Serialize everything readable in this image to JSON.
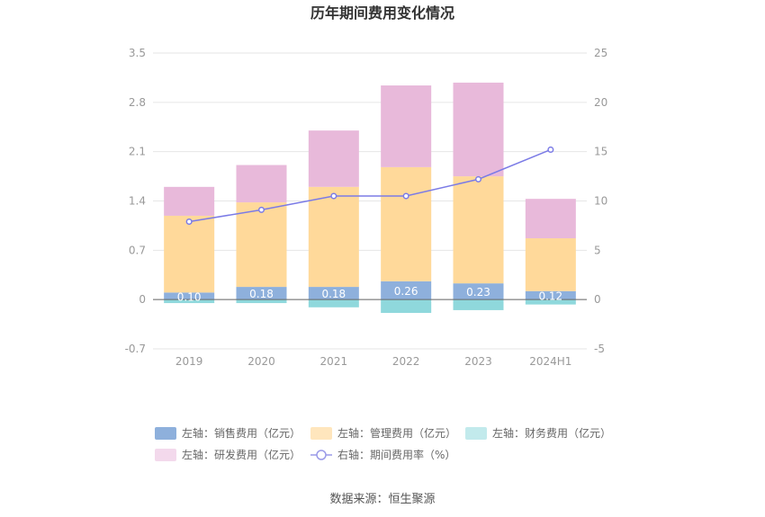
{
  "chart_data": {
    "type": "bar",
    "title": "历年期间费用变化情况",
    "categories": [
      "2019",
      "2020",
      "2021",
      "2022",
      "2023",
      "2024H1"
    ],
    "left_axis": {
      "ticks": [
        "3.5",
        "2.8",
        "2.1",
        "1.4",
        "0.7",
        "0",
        "-0.7"
      ],
      "min": -0.7,
      "max": 3.5
    },
    "right_axis": {
      "ticks": [
        "25",
        "20",
        "15",
        "10",
        "5",
        "0",
        "-5"
      ],
      "min": -5,
      "max": 25
    },
    "series": [
      {
        "name": "左轴：销售费用（亿元）",
        "color": "#8eb0dc",
        "values": [
          0.1,
          0.18,
          0.18,
          0.26,
          0.23,
          0.12
        ],
        "labels": [
          "0.10",
          "0.18",
          "0.18",
          "0.26",
          "0.23",
          "0.12"
        ]
      },
      {
        "name": "左轴：管理费用（亿元）",
        "color": "#ffd99a",
        "values": [
          1.09,
          1.2,
          1.42,
          1.62,
          1.52,
          0.75
        ]
      },
      {
        "name": "左轴：财务费用（亿元）",
        "color": "#8fd8dc",
        "values": [
          -0.05,
          -0.05,
          -0.11,
          -0.19,
          -0.15,
          -0.07
        ]
      },
      {
        "name": "左轴：研发费用（亿元）",
        "color": "#e8b9da",
        "values": [
          0.41,
          0.53,
          0.8,
          1.16,
          1.33,
          0.56
        ]
      },
      {
        "name": "右轴：期间费用率（%）",
        "color": "#7b7be6",
        "axis": "right",
        "values": [
          7.9,
          9.1,
          10.5,
          10.5,
          12.2,
          15.2
        ]
      }
    ],
    "legend_position": "bottom",
    "grid": true
  },
  "legend": [
    {
      "label": "左轴：销售费用（亿元）",
      "color": "#8eb0dc",
      "kind": "rect"
    },
    {
      "label": "左轴：管理费用（亿元）",
      "color": "#ffe6bd",
      "kind": "rect"
    },
    {
      "label": "左轴：财务费用（亿元）",
      "color": "#c2eaec",
      "kind": "rect"
    },
    {
      "label": "左轴：研发费用（亿元）",
      "color": "#f3d9ec",
      "kind": "rect"
    },
    {
      "label": "右轴：期间费用率（%）",
      "color": "#9a9ae8",
      "kind": "line"
    }
  ],
  "source": "数据来源：恒生聚源"
}
